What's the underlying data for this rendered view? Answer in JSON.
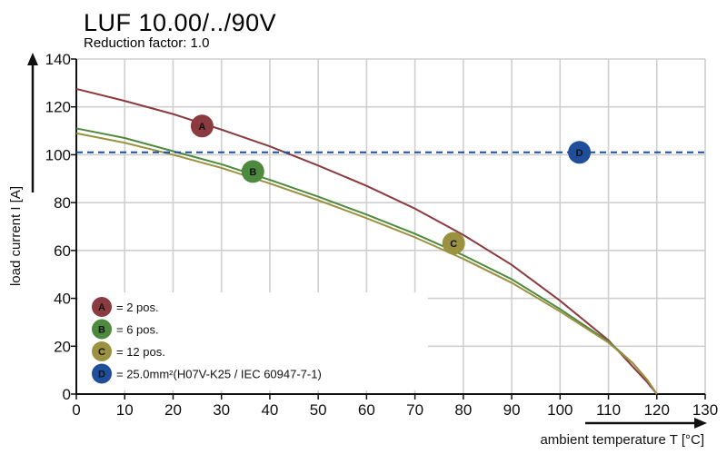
{
  "chart_data": {
    "type": "line",
    "title": "LUF 10.00/../90V",
    "subtitle": "Reduction factor: 1.0",
    "xlabel": "ambient temperature T [°C]",
    "ylabel": "load current I [A]",
    "xlim": [
      0,
      130
    ],
    "ylim": [
      0,
      140
    ],
    "xticks": [
      0,
      10,
      20,
      30,
      40,
      50,
      60,
      70,
      80,
      90,
      100,
      110,
      120,
      130
    ],
    "yticks": [
      0,
      20,
      40,
      60,
      80,
      100,
      120,
      140
    ],
    "grid": true,
    "legend_position": "bottom-left",
    "series": [
      {
        "name": "A",
        "legend": "= 2 pos.",
        "color": "#8b3a3f",
        "x": [
          0,
          10,
          20,
          30,
          40,
          50,
          60,
          70,
          80,
          90,
          100,
          110,
          115,
          118,
          120
        ],
        "y": [
          127.5,
          122.5,
          117,
          110.5,
          103.5,
          95.5,
          87,
          77.5,
          66.5,
          54,
          39,
          22.5,
          11.5,
          5,
          0
        ]
      },
      {
        "name": "B",
        "legend": "= 6 pos.",
        "color": "#4e8a3e",
        "x": [
          0,
          10,
          20,
          30,
          40,
          50,
          60,
          70,
          80,
          90,
          100,
          110,
          115,
          118,
          120
        ],
        "y": [
          111,
          107,
          101.5,
          96,
          89.5,
          82.5,
          75,
          67,
          58,
          48,
          35.5,
          22,
          13,
          6,
          0
        ]
      },
      {
        "name": "C",
        "legend": "= 12 pos.",
        "color": "#9a9240",
        "x": [
          0,
          10,
          20,
          30,
          40,
          50,
          60,
          70,
          80,
          90,
          100,
          110,
          115,
          118,
          120
        ],
        "y": [
          109,
          105,
          100,
          94.5,
          88,
          81,
          73.5,
          65.5,
          56.5,
          46.5,
          34.5,
          21.5,
          13,
          6,
          0
        ]
      },
      {
        "name": "D",
        "legend": "= 25.0mm²(H07V-K25 / IEC 60947-7-1)",
        "color": "#1f4f9a",
        "style": "dashed",
        "x": [
          0,
          130
        ],
        "y": [
          101,
          101
        ]
      }
    ],
    "markers": [
      {
        "series": "A",
        "label": "A",
        "x": 26,
        "y": 112
      },
      {
        "series": "B",
        "label": "B",
        "x": 36.5,
        "y": 93
      },
      {
        "series": "C",
        "label": "C",
        "x": 78,
        "y": 63
      },
      {
        "series": "D",
        "label": "D",
        "x": 104,
        "y": 101
      }
    ]
  }
}
